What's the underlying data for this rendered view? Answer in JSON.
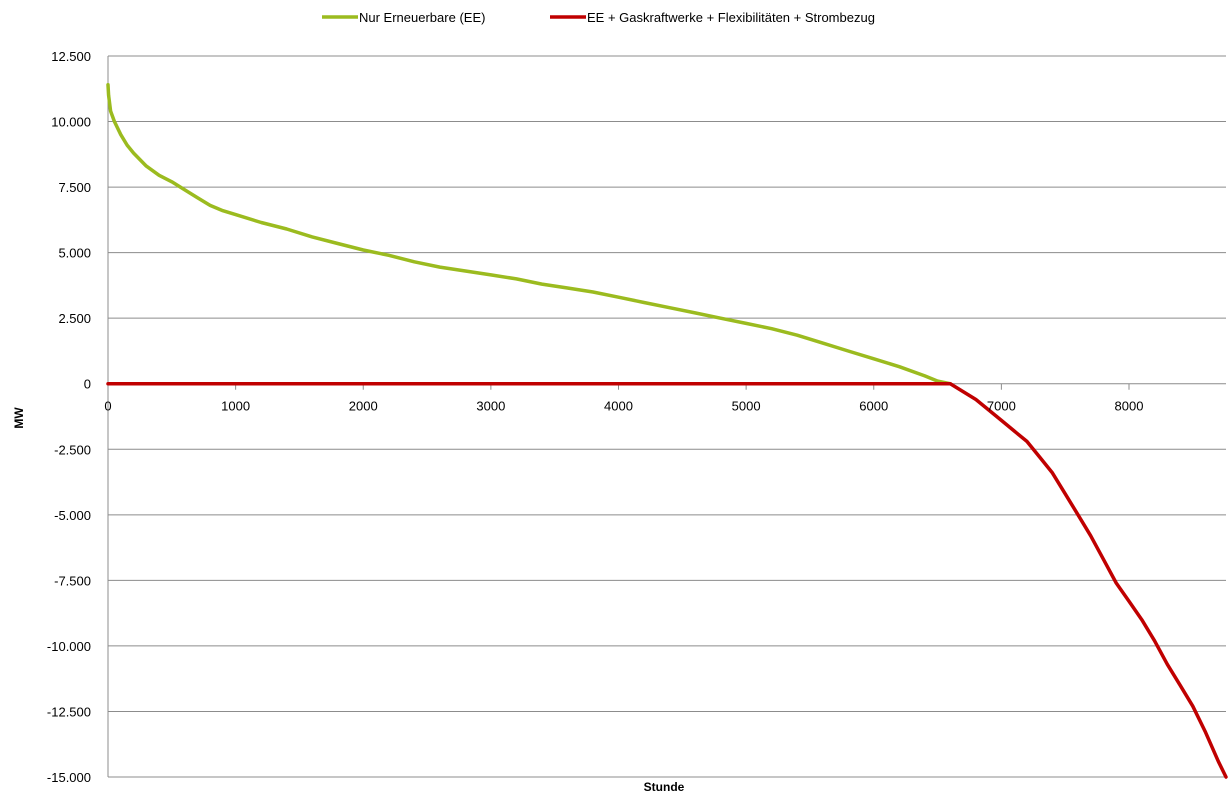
{
  "chart_data": {
    "type": "line",
    "title": "",
    "xlabel": "Stunde",
    "ylabel": "MW",
    "xlim": [
      0,
      8760
    ],
    "ylim": [
      -15000,
      12500
    ],
    "x_ticks": [
      0,
      1000,
      2000,
      3000,
      4000,
      5000,
      6000,
      7000,
      8000
    ],
    "x_tick_labels": [
      "0",
      "1000",
      "2000",
      "3000",
      "4000",
      "5000",
      "6000",
      "7000",
      "8000"
    ],
    "y_ticks": [
      12500,
      10000,
      7500,
      5000,
      2500,
      0,
      -2500,
      -5000,
      -7500,
      -10000,
      -12500,
      -15000
    ],
    "y_tick_labels": [
      "12.500",
      "10.000",
      "7.500",
      "5.000",
      "2.500",
      "0",
      "-2.500",
      "-5.000",
      "-7.500",
      "-10.000",
      "-12.500",
      "-15.000"
    ],
    "negative_tick_color": "#ff0000",
    "positive_tick_color": "#000000",
    "grid": "horizontal",
    "legend_position": "top",
    "series": [
      {
        "name": "Nur Erneuerbare (EE)",
        "color": "#9bbb1f",
        "x": [
          0,
          5,
          20,
          50,
          100,
          150,
          200,
          300,
          400,
          500,
          600,
          700,
          800,
          900,
          1000,
          1200,
          1400,
          1600,
          1800,
          2000,
          2200,
          2400,
          2600,
          2800,
          3000,
          3200,
          3400,
          3600,
          3800,
          4000,
          4200,
          4400,
          4600,
          4800,
          5000,
          5200,
          5400,
          5600,
          5800,
          6000,
          6200,
          6400,
          6500,
          6600
        ],
        "y": [
          11400,
          11000,
          10400,
          10000,
          9500,
          9100,
          8800,
          8300,
          7950,
          7700,
          7400,
          7100,
          6800,
          6600,
          6450,
          6150,
          5900,
          5600,
          5350,
          5100,
          4900,
          4650,
          4450,
          4300,
          4150,
          4000,
          3800,
          3650,
          3500,
          3300,
          3100,
          2900,
          2700,
          2500,
          2300,
          2100,
          1850,
          1550,
          1250,
          950,
          650,
          300,
          100,
          0
        ]
      },
      {
        "name": "EE + Gaskraftwerke + Flexibilitäten + Strombezug",
        "color": "#c00000",
        "x": [
          0,
          6600,
          6700,
          6800,
          6900,
          7000,
          7100,
          7200,
          7300,
          7400,
          7500,
          7600,
          7700,
          7800,
          7900,
          8000,
          8100,
          8200,
          8300,
          8400,
          8500,
          8600,
          8700,
          8760
        ],
        "y": [
          0,
          0,
          -300,
          -600,
          -1000,
          -1400,
          -1800,
          -2200,
          -2800,
          -3400,
          -4200,
          -5000,
          -5800,
          -6700,
          -7600,
          -8300,
          -9000,
          -9800,
          -10700,
          -11500,
          -12300,
          -13300,
          -14400,
          -15000
        ]
      }
    ]
  }
}
